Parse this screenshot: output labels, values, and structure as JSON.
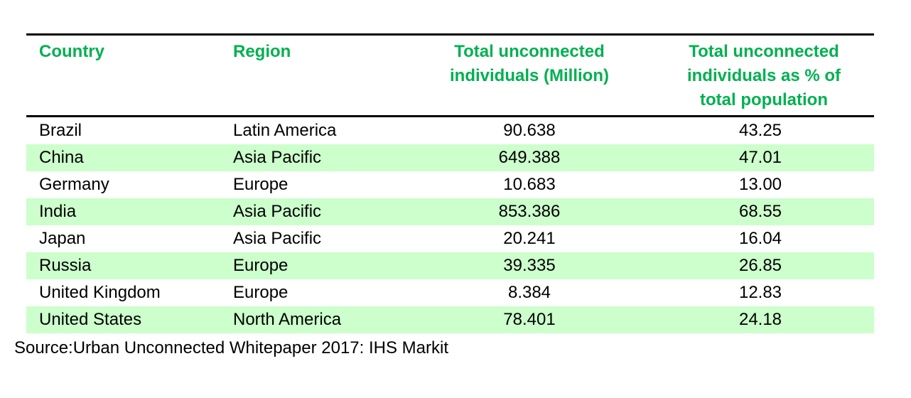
{
  "headers": [
    "Country",
    "Region",
    "Total unconnected individuals (Million)",
    "Total unconnected individuals as % of total population"
  ],
  "rows": [
    [
      "Brazil",
      "Latin America",
      "90.638",
      "43.25"
    ],
    [
      "China",
      "Asia Pacific",
      "649.388",
      "47.01"
    ],
    [
      "Germany",
      "Europe",
      "10.683",
      "13.00"
    ],
    [
      "India",
      "Asia Pacific",
      "853.386",
      "68.55"
    ],
    [
      "Japan",
      "Asia Pacific",
      "20.241",
      "16.04"
    ],
    [
      "Russia",
      "Europe",
      "39.335",
      "26.85"
    ],
    [
      "United Kingdom",
      "Europe",
      "8.384",
      "12.83"
    ],
    [
      "United States",
      "North America",
      "78.401",
      "24.18"
    ]
  ],
  "source": "Source:Urban Unconnected Whitepaper 2017: IHS Markit",
  "colors": {
    "header": "#00b050",
    "row_shade": "#ccffcc"
  }
}
